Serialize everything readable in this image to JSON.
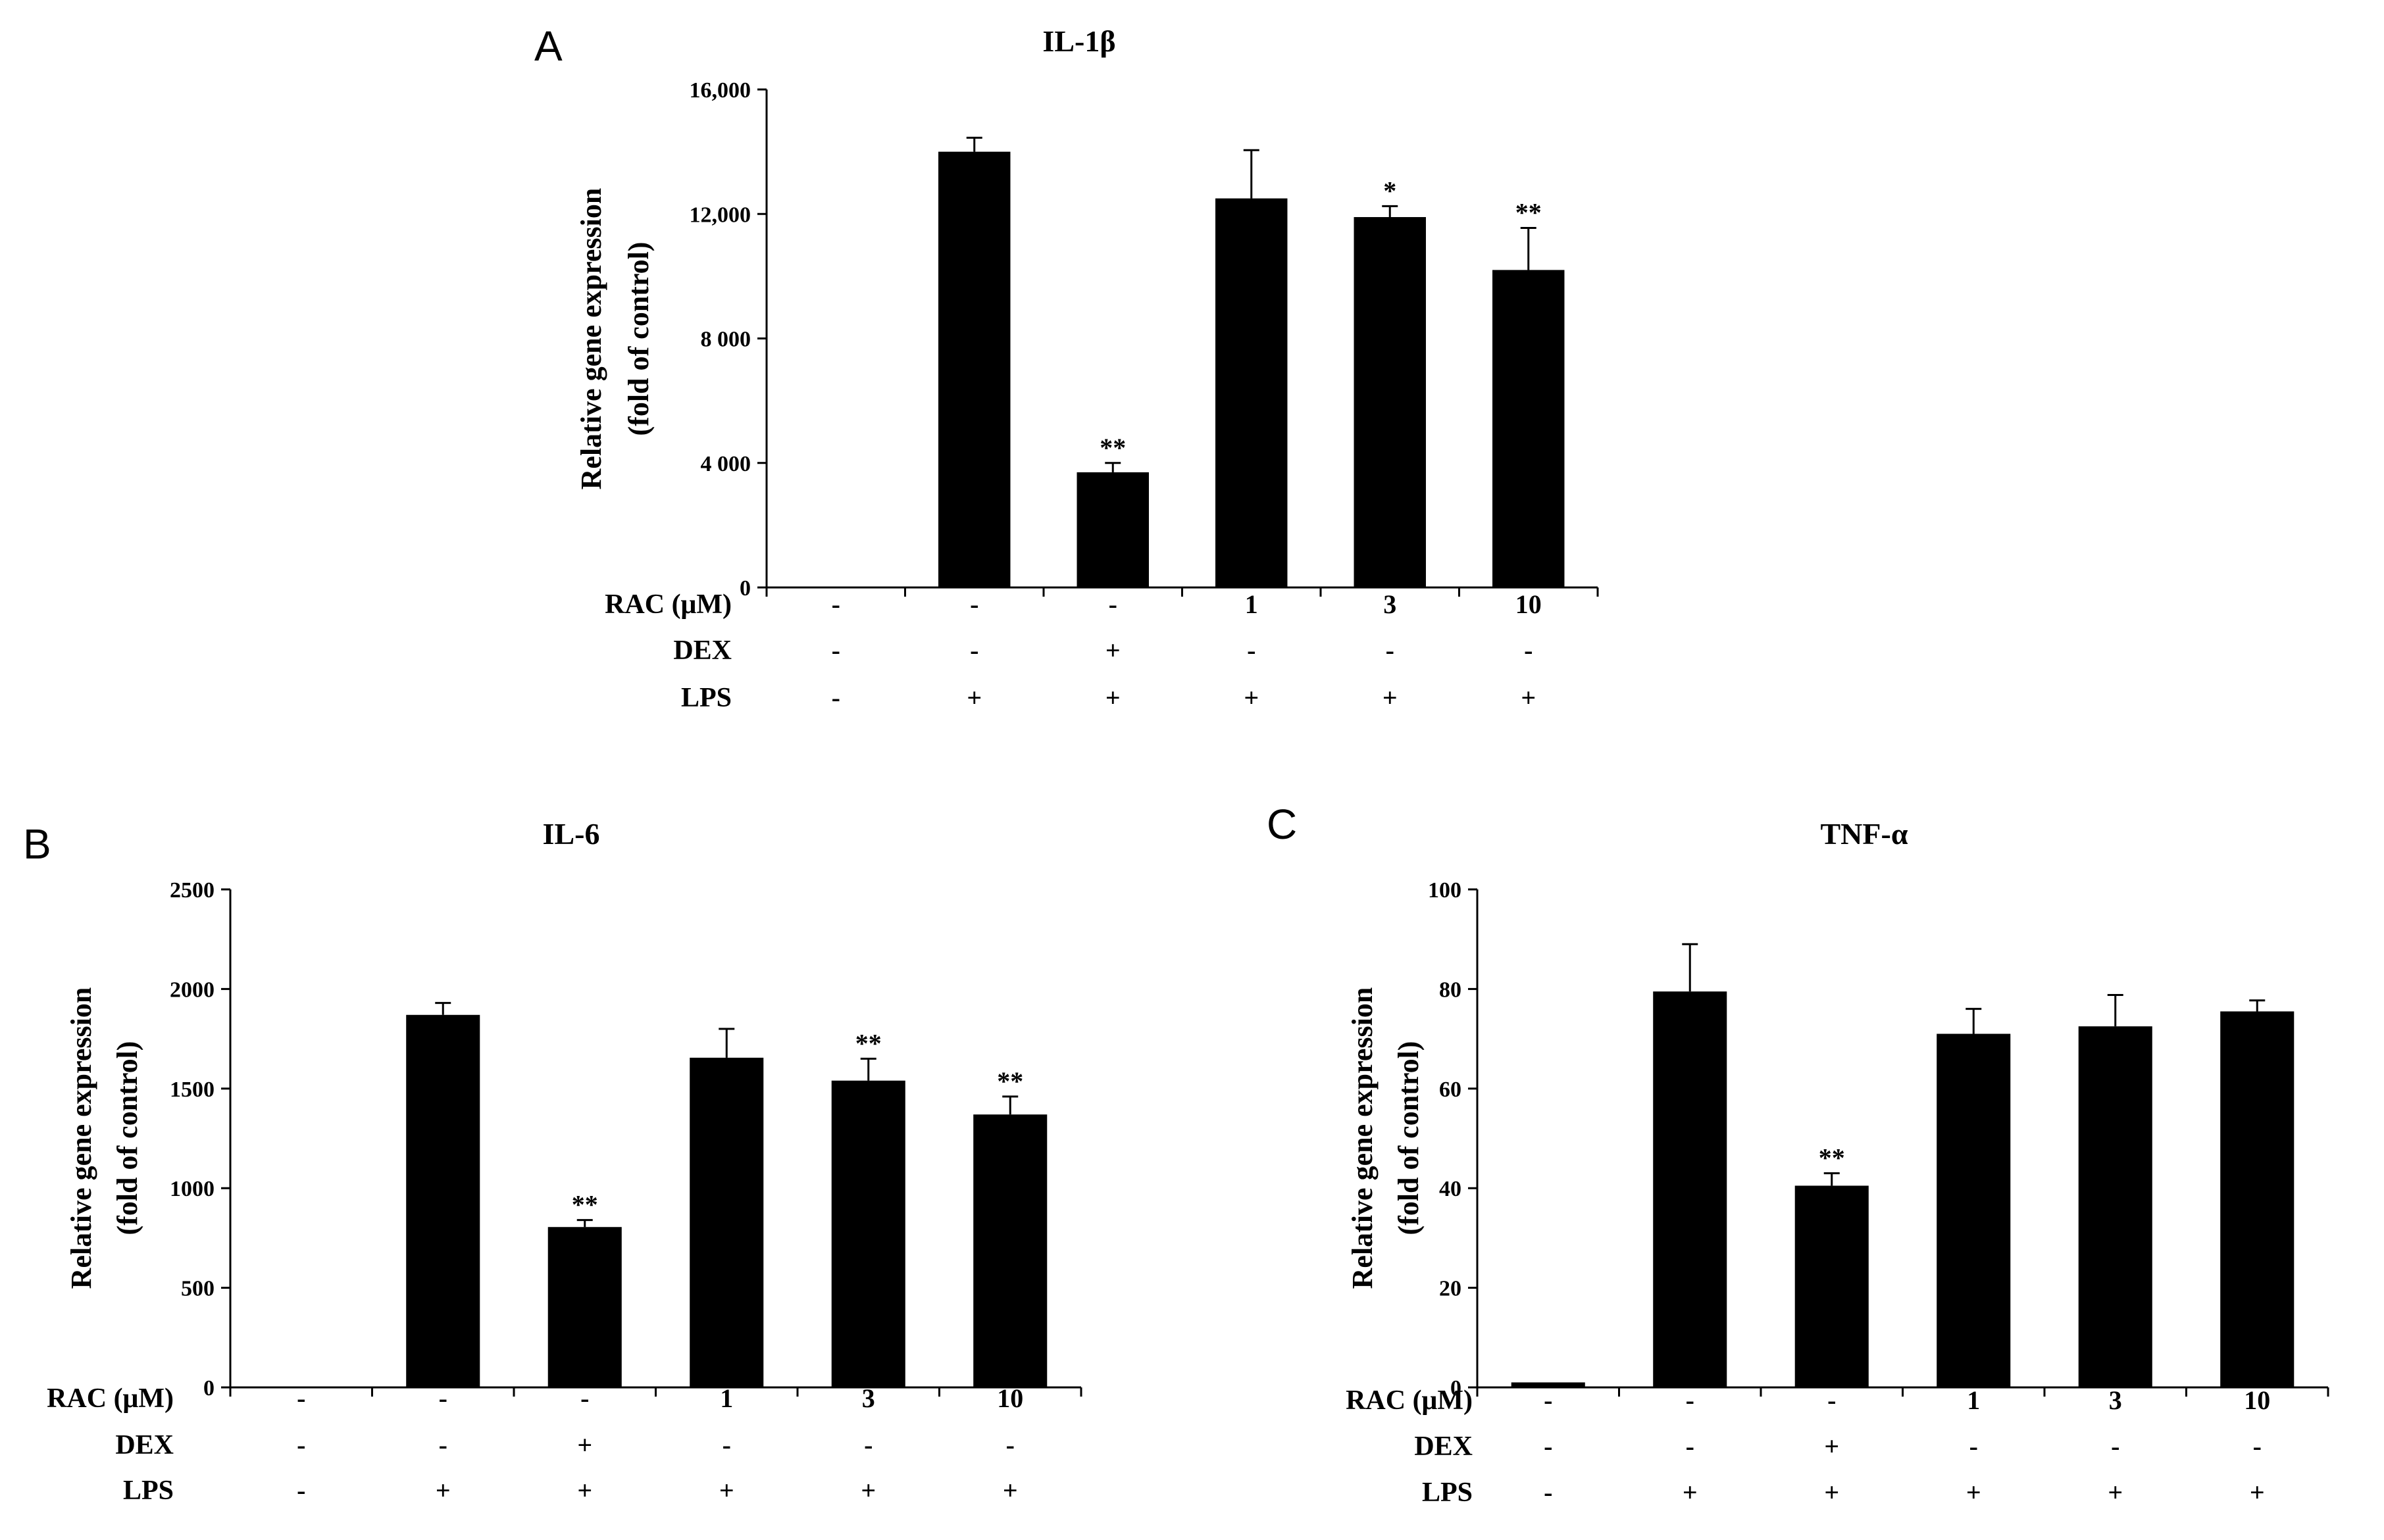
{
  "chart_data": [
    {
      "type": "bar",
      "panel_label": "A",
      "title": "IL-1β",
      "ylabel_lines": [
        "Relative gene expression",
        "(fold of control)"
      ],
      "ylim": [
        0,
        16000
      ],
      "yticks": [
        {
          "value": 0,
          "label": "0"
        },
        {
          "value": 4000,
          "label": "4 000"
        },
        {
          "value": 8000,
          "label": "8 000"
        },
        {
          "value": 12000,
          "label": "12,000"
        },
        {
          "value": 16000,
          "label": "16,000"
        }
      ],
      "values": [
        0,
        14000,
        3700,
        12500,
        11900,
        10200
      ],
      "errors": [
        0,
        450,
        300,
        1550,
        350,
        1350
      ],
      "significance": [
        "",
        "",
        "**",
        "",
        "*",
        "**"
      ],
      "conditions": [
        {
          "label": "RAC (μM)",
          "values": [
            "-",
            "-",
            "-",
            "1",
            "3",
            "10"
          ]
        },
        {
          "label": "DEX",
          "values": [
            "-",
            "-",
            "+",
            "-",
            "-",
            "-"
          ]
        },
        {
          "label": "LPS",
          "values": [
            "-",
            "+",
            "+",
            "+",
            "+",
            "+"
          ]
        }
      ]
    },
    {
      "type": "bar",
      "panel_label": "B",
      "title": "IL-6",
      "ylabel_lines": [
        "Relative gene expression",
        "(fold of control)"
      ],
      "ylim": [
        0,
        2500
      ],
      "yticks": [
        {
          "value": 0,
          "label": "0"
        },
        {
          "value": 500,
          "label": "500"
        },
        {
          "value": 1000,
          "label": "1000"
        },
        {
          "value": 1500,
          "label": "1500"
        },
        {
          "value": 2000,
          "label": "2000"
        },
        {
          "value": 2500,
          "label": "2500"
        }
      ],
      "values": [
        0,
        1870,
        805,
        1655,
        1540,
        1370
      ],
      "errors": [
        0,
        60,
        35,
        145,
        110,
        90
      ],
      "significance": [
        "",
        "",
        "**",
        "",
        "**",
        "**"
      ],
      "conditions": [
        {
          "label": "RAC (μM)",
          "values": [
            "-",
            "-",
            "-",
            "1",
            "3",
            "10"
          ]
        },
        {
          "label": "DEX",
          "values": [
            "-",
            "-",
            "+",
            "-",
            "-",
            "-"
          ]
        },
        {
          "label": "LPS",
          "values": [
            "-",
            "+",
            "+",
            "+",
            "+",
            "+"
          ]
        }
      ]
    },
    {
      "type": "bar",
      "panel_label": "C",
      "title": "TNF-α",
      "ylabel_lines": [
        "Relative gene expression",
        "(fold of control)"
      ],
      "ylim": [
        0,
        100
      ],
      "yticks": [
        {
          "value": 0,
          "label": "0"
        },
        {
          "value": 20,
          "label": "20"
        },
        {
          "value": 40,
          "label": "40"
        },
        {
          "value": 60,
          "label": "60"
        },
        {
          "value": 80,
          "label": "80"
        },
        {
          "value": 100,
          "label": "100"
        }
      ],
      "values": [
        1,
        79.5,
        40.5,
        71,
        72.5,
        75.5
      ],
      "errors": [
        0,
        9.5,
        2.5,
        5,
        6.3,
        2.2
      ],
      "significance": [
        "",
        "",
        "**",
        "",
        "",
        ""
      ],
      "conditions": [
        {
          "label": "RAC (μM)",
          "values": [
            "-",
            "-",
            "-",
            "1",
            "3",
            "10"
          ]
        },
        {
          "label": "DEX",
          "values": [
            "-",
            "-",
            "+",
            "-",
            "-",
            "-"
          ]
        },
        {
          "label": "LPS",
          "values": [
            "-",
            "+",
            "+",
            "+",
            "+",
            "+"
          ]
        }
      ]
    }
  ]
}
